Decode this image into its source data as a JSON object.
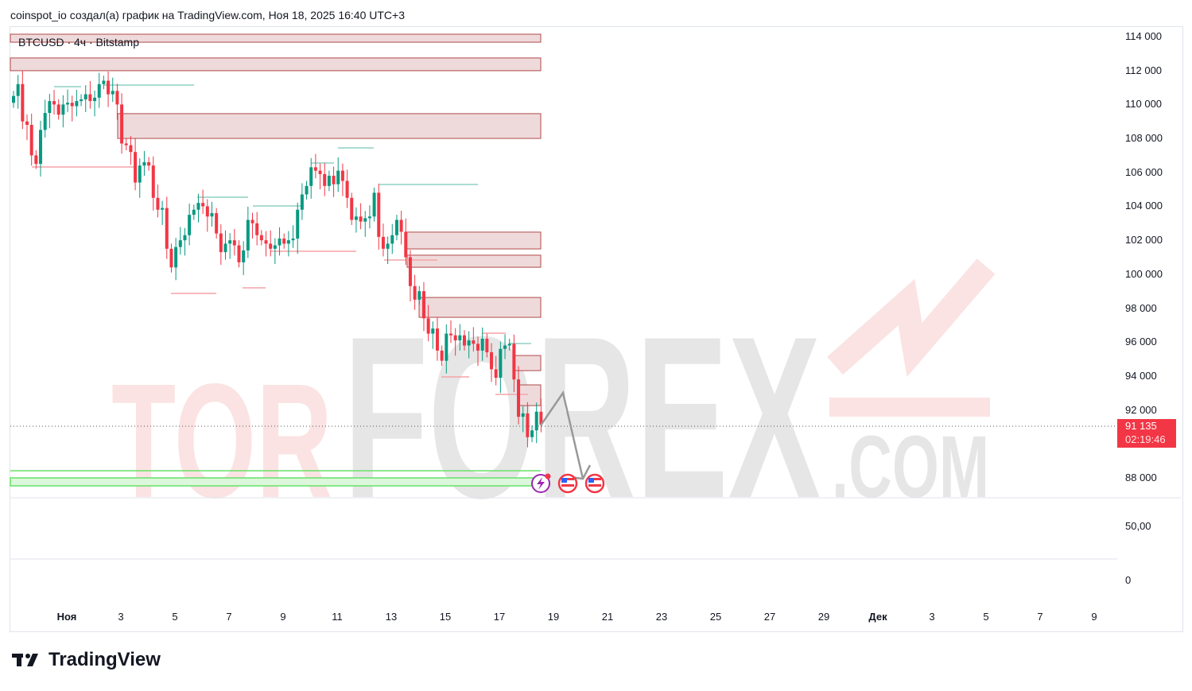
{
  "header": "coinspot_io создал(а) график на TradingView.com, Ноя 18, 2025 16:40 UTC+3",
  "symbol": "BTCUSD · 4ч · Bitstamp",
  "price_axis": [
    "114 000",
    "112 000",
    "110 000",
    "108 000",
    "106 000",
    "104 000",
    "102 000",
    "100 000",
    "98 000",
    "96 000",
    "94 000",
    "92 000",
    "88 000"
  ],
  "indicator_axis": [
    "50,00",
    "0"
  ],
  "time_axis": [
    "Ноя",
    "3",
    "5",
    "7",
    "9",
    "11",
    "13",
    "15",
    "17",
    "19",
    "21",
    "23",
    "25",
    "27",
    "29",
    "Дек",
    "3",
    "5",
    "7",
    "9"
  ],
  "last_price": "91 135",
  "countdown": "02:19:46",
  "watermark": "TORFOREX.COM",
  "logo": "TradingView",
  "colors": {
    "up": "#089981",
    "down": "#f23645",
    "zone": "#efdadb",
    "zone_border": "#b04a4a"
  },
  "chart_data": {
    "type": "candlestick",
    "timeframe": "4h",
    "ylim": [
      87000,
      114500
    ],
    "closes": [
      110.5,
      111.2,
      109,
      108.8,
      107,
      106.5,
      108.5,
      109.5,
      110.2,
      110,
      109.4,
      110,
      110.1,
      109.9,
      110.2,
      110.3,
      110.6,
      110.2,
      110.4,
      111.2,
      111.4,
      110.6,
      110.8,
      110,
      107.7,
      107.6,
      107.2,
      105.4,
      106.4,
      106.6,
      106.4,
      104.5,
      103.8,
      103.9,
      101.5,
      100.4,
      101.6,
      102,
      102.3,
      103.5,
      103.8,
      104.2,
      104,
      103.4,
      103.6,
      102.4,
      101.3,
      101.8,
      102,
      101.7,
      100.7,
      101.4,
      103.2,
      103,
      102.3,
      102,
      101.8,
      101.5,
      101.7,
      102.1,
      101.8,
      102,
      102.1,
      103.8,
      104.7,
      105.2,
      106.3,
      106.1,
      105.9,
      105.2,
      105.8,
      105.3,
      106.1,
      105.5,
      104.5,
      103.2,
      103.4,
      103.1,
      103.3,
      103.4,
      104.8,
      102.2,
      101.5,
      101.8,
      102.3,
      103.2,
      102.5,
      101,
      99.3,
      98.5,
      99,
      97.4,
      96.5,
      96.8,
      95.5,
      94.9,
      96.5,
      96.4,
      96.1,
      96.4,
      95.8,
      96.1,
      95.9,
      95.5,
      96.2,
      95.4,
      94.4,
      93.9,
      95.6,
      95.8,
      95.9,
      93.8,
      91.6,
      91.8,
      90.4,
      90.8,
      91.9,
      91.135
    ],
    "zones": [
      [
        113.67,
        114.14
      ],
      [
        111.99,
        112.74
      ],
      [
        108.0,
        109.46
      ],
      [
        101.49,
        102.48
      ],
      [
        100.41,
        101.12
      ],
      [
        97.46,
        98.63
      ],
      [
        94.32,
        95.21
      ],
      [
        92.26,
        93.48
      ]
    ]
  }
}
